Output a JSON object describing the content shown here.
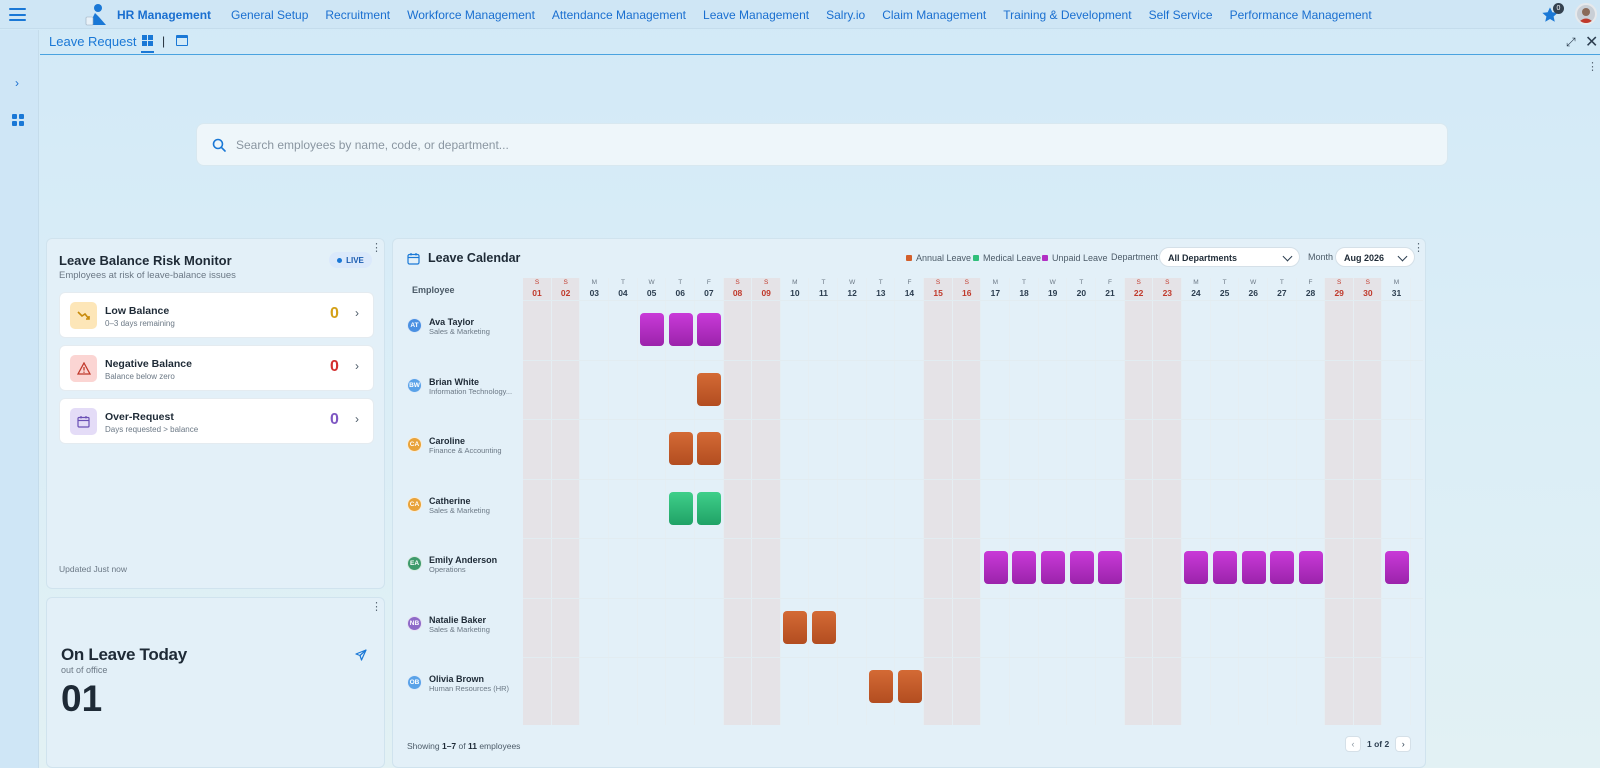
{
  "app": {
    "brand": "HR Management"
  },
  "nav": [
    "General Setup",
    "Recruitment",
    "Workforce Management",
    "Attendance Management",
    "Leave Management",
    "Salry.io",
    "Claim Management",
    "Training & Development",
    "Self Service",
    "Performance Management"
  ],
  "notifications": {
    "count": "0"
  },
  "page": {
    "title": "Leave Request"
  },
  "search": {
    "placeholder": "Search employees by name, code, or department..."
  },
  "risk": {
    "title": "Leave Balance Risk Monitor",
    "subtitle": "Employees at risk of leave-balance issues",
    "live": "LIVE",
    "items": [
      {
        "name": "Low Balance",
        "desc": "0–3 days remaining",
        "value": "0",
        "color": "#d4a017",
        "icon": "trend-down-icon"
      },
      {
        "name": "Negative Balance",
        "desc": "Balance below zero",
        "value": "0",
        "color": "#d32f2f",
        "icon": "warning-icon"
      },
      {
        "name": "Over-Request",
        "desc": "Days requested > balance",
        "value": "0",
        "color": "#7e57c2",
        "icon": "calendar-icon"
      }
    ],
    "updated": "Updated Just now"
  },
  "on_leave": {
    "title": "On Leave Today",
    "subtitle": "out of office",
    "value": "01"
  },
  "calendar": {
    "title": "Leave Calendar",
    "legend": [
      {
        "label": "Annual Leave",
        "color": "#d35f2b"
      },
      {
        "label": "Medical Leave",
        "color": "#2fbf7a"
      },
      {
        "label": "Unpaid Leave",
        "color": "#b22fc4"
      }
    ],
    "department_label": "Department",
    "department_value": "All Departments",
    "month_label": "Month",
    "month_value": "Aug 2026",
    "employee_header": "Employee",
    "days": [
      {
        "d": "01",
        "w": "S"
      },
      {
        "d": "02",
        "w": "S"
      },
      {
        "d": "03",
        "w": "M"
      },
      {
        "d": "04",
        "w": "T"
      },
      {
        "d": "05",
        "w": "W"
      },
      {
        "d": "06",
        "w": "T"
      },
      {
        "d": "07",
        "w": "F"
      },
      {
        "d": "08",
        "w": "S"
      },
      {
        "d": "09",
        "w": "S"
      },
      {
        "d": "10",
        "w": "M"
      },
      {
        "d": "11",
        "w": "T"
      },
      {
        "d": "12",
        "w": "W"
      },
      {
        "d": "13",
        "w": "T"
      },
      {
        "d": "14",
        "w": "F"
      },
      {
        "d": "15",
        "w": "S"
      },
      {
        "d": "16",
        "w": "S"
      },
      {
        "d": "17",
        "w": "M"
      },
      {
        "d": "18",
        "w": "T"
      },
      {
        "d": "19",
        "w": "W"
      },
      {
        "d": "20",
        "w": "T"
      },
      {
        "d": "21",
        "w": "F"
      },
      {
        "d": "22",
        "w": "S"
      },
      {
        "d": "23",
        "w": "S"
      },
      {
        "d": "24",
        "w": "M"
      },
      {
        "d": "25",
        "w": "T"
      },
      {
        "d": "26",
        "w": "W"
      },
      {
        "d": "27",
        "w": "T"
      },
      {
        "d": "28",
        "w": "F"
      },
      {
        "d": "29",
        "w": "S"
      },
      {
        "d": "30",
        "w": "S"
      },
      {
        "d": "31",
        "w": "M"
      }
    ],
    "employees": [
      {
        "initials": "AT",
        "name": "Ava Taylor",
        "dept": "Sales & Marketing",
        "color": "#4a90e2",
        "leaves": [
          {
            "day": 5,
            "type": "unpaid"
          },
          {
            "day": 6,
            "type": "unpaid"
          },
          {
            "day": 7,
            "type": "unpaid"
          }
        ]
      },
      {
        "initials": "BW",
        "name": "Brian White",
        "dept": "Information Technology...",
        "color": "#5aa2e8",
        "leaves": [
          {
            "day": 7,
            "type": "annual"
          }
        ]
      },
      {
        "initials": "CA",
        "name": "Caroline",
        "dept": "Finance & Accounting",
        "color": "#e8a33a",
        "leaves": [
          {
            "day": 6,
            "type": "annual"
          },
          {
            "day": 7,
            "type": "annual"
          }
        ]
      },
      {
        "initials": "CA",
        "name": "Catherine",
        "dept": "Sales & Marketing",
        "color": "#e8a33a",
        "leaves": [
          {
            "day": 6,
            "type": "medical"
          },
          {
            "day": 7,
            "type": "medical"
          }
        ]
      },
      {
        "initials": "EA",
        "name": "Emily Anderson",
        "dept": "Operations",
        "color": "#3e9a6b",
        "leaves": [
          {
            "day": 17,
            "type": "unpaid"
          },
          {
            "day": 18,
            "type": "unpaid"
          },
          {
            "day": 19,
            "type": "unpaid"
          },
          {
            "day": 20,
            "type": "unpaid"
          },
          {
            "day": 21,
            "type": "unpaid"
          },
          {
            "day": 24,
            "type": "unpaid"
          },
          {
            "day": 25,
            "type": "unpaid"
          },
          {
            "day": 26,
            "type": "unpaid"
          },
          {
            "day": 27,
            "type": "unpaid"
          },
          {
            "day": 28,
            "type": "unpaid"
          },
          {
            "day": 31,
            "type": "unpaid"
          }
        ]
      },
      {
        "initials": "NB",
        "name": "Natalie Baker",
        "dept": "Sales & Marketing",
        "color": "#8e6ac8",
        "leaves": [
          {
            "day": 10,
            "type": "annual"
          },
          {
            "day": 11,
            "type": "annual"
          }
        ]
      },
      {
        "initials": "OB",
        "name": "Olivia Brown",
        "dept": "Human Resources (HR)",
        "color": "#5aa2e8",
        "leaves": [
          {
            "day": 13,
            "type": "annual"
          },
          {
            "day": 14,
            "type": "annual"
          }
        ]
      }
    ],
    "footer": {
      "prefix": "Showing ",
      "range": "1–7",
      "mid": " of ",
      "total": "11",
      "suffix": " employees",
      "page": "1 of 2"
    }
  }
}
